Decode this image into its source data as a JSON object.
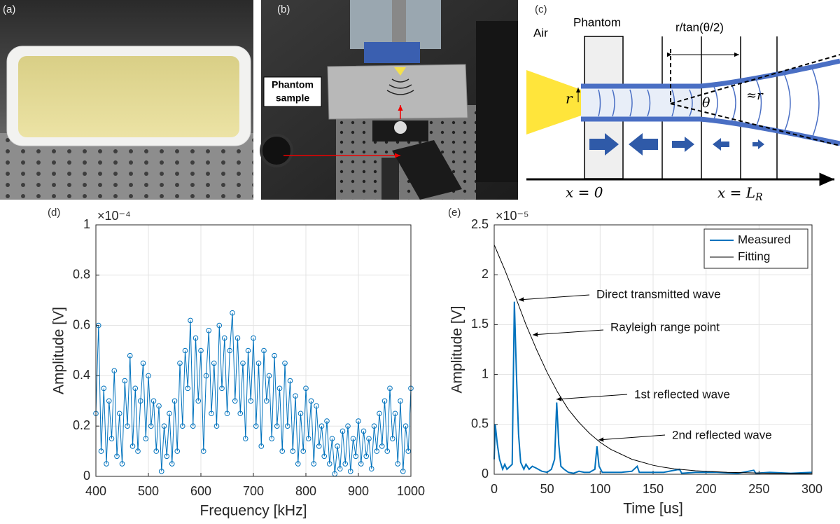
{
  "panels": {
    "a": {
      "label": "(a)"
    },
    "b": {
      "label": "(b)",
      "annotation": [
        "Phantom",
        "sample"
      ]
    },
    "c": {
      "label": "(c)",
      "air": "Air",
      "phantom": "Phantom",
      "distance": "r/tan(θ/2)",
      "radius": "r",
      "angle": "θ",
      "approx_radius": "≈r",
      "x0": "x = 0",
      "xl": "x = L",
      "xl_sub": "R"
    }
  },
  "chart_data": [
    {
      "type": "line",
      "panel_label": "(d)",
      "xlabel": "Frequency [kHz]",
      "ylabel": "Amplitude [V]",
      "y_multiplier": "×10⁻⁴",
      "xlim": [
        400,
        1000
      ],
      "xticks": [
        400,
        500,
        600,
        700,
        800,
        900,
        1000
      ],
      "ylim": [
        0,
        1
      ],
      "yticks": [
        0,
        0.2,
        0.4,
        0.6,
        0.8,
        1
      ],
      "grid": true,
      "series": [
        {
          "color": "#0072bd",
          "marker": "circle",
          "x": [
            400,
            405,
            410,
            415,
            420,
            425,
            430,
            435,
            440,
            445,
            450,
            455,
            460,
            465,
            470,
            475,
            480,
            485,
            490,
            495,
            500,
            505,
            510,
            515,
            520,
            525,
            530,
            535,
            540,
            545,
            550,
            555,
            560,
            565,
            570,
            575,
            580,
            585,
            590,
            595,
            600,
            605,
            610,
            615,
            620,
            625,
            630,
            635,
            640,
            645,
            650,
            655,
            660,
            665,
            670,
            675,
            680,
            685,
            690,
            695,
            700,
            705,
            710,
            715,
            720,
            725,
            730,
            735,
            740,
            745,
            750,
            755,
            760,
            765,
            770,
            775,
            780,
            785,
            790,
            795,
            800,
            805,
            810,
            815,
            820,
            825,
            830,
            835,
            840,
            845,
            850,
            855,
            860,
            865,
            870,
            875,
            880,
            885,
            890,
            895,
            900,
            905,
            910,
            915,
            920,
            925,
            930,
            935,
            940,
            945,
            950,
            955,
            960,
            965,
            970,
            975,
            980,
            985,
            990,
            995,
            1000
          ],
          "values": [
            0.25,
            0.6,
            0.1,
            0.35,
            0.05,
            0.3,
            0.15,
            0.42,
            0.08,
            0.25,
            0.05,
            0.38,
            0.2,
            0.48,
            0.12,
            0.35,
            0.1,
            0.3,
            0.45,
            0.15,
            0.4,
            0.2,
            0.3,
            0.1,
            0.28,
            0.02,
            0.2,
            0.08,
            0.25,
            0.05,
            0.3,
            0.1,
            0.45,
            0.2,
            0.5,
            0.35,
            0.62,
            0.2,
            0.55,
            0.3,
            0.5,
            0.1,
            0.4,
            0.58,
            0.25,
            0.45,
            0.2,
            0.6,
            0.35,
            0.55,
            0.25,
            0.5,
            0.65,
            0.3,
            0.55,
            0.25,
            0.45,
            0.15,
            0.5,
            0.3,
            0.55,
            0.2,
            0.45,
            0.12,
            0.5,
            0.3,
            0.4,
            0.15,
            0.48,
            0.2,
            0.35,
            0.1,
            0.45,
            0.2,
            0.38,
            0.1,
            0.32,
            0.05,
            0.25,
            0.1,
            0.35,
            0.15,
            0.3,
            0.05,
            0.28,
            0.12,
            0.2,
            0.08,
            0.22,
            0.05,
            0.15,
            0.01,
            0.12,
            0.03,
            0.18,
            0.05,
            0.2,
            0.02,
            0.15,
            0.08,
            0.22,
            0.05,
            0.18,
            0.08,
            0.15,
            0.03,
            0.2,
            0.1,
            0.25,
            0.12,
            0.3,
            0.1,
            0.35,
            0.15,
            0.25,
            0.05,
            0.3,
            0.02,
            0.2,
            0.1,
            0.35
          ]
        }
      ]
    },
    {
      "type": "line",
      "panel_label": "(e)",
      "xlabel": "Time [us]",
      "ylabel": "Amplitude [V]",
      "y_multiplier": "×10⁻⁵",
      "xlim": [
        0,
        300
      ],
      "xticks": [
        0,
        50,
        100,
        150,
        200,
        250,
        300
      ],
      "ylim": [
        0,
        2.5
      ],
      "yticks": [
        0,
        0.5,
        1,
        1.5,
        2,
        2.5
      ],
      "grid": true,
      "legend": "top-right",
      "annotations": [
        "Direct transmitted wave",
        "Rayleigh range point",
        "1st reflected wave",
        "2nd reflected wave"
      ],
      "series": [
        {
          "name": "Measured",
          "color": "#0072bd",
          "x": [
            0,
            1,
            3,
            5,
            8,
            10,
            12,
            15,
            17,
            19,
            21,
            23,
            25,
            28,
            30,
            33,
            36,
            40,
            45,
            50,
            54,
            57,
            59,
            61,
            63,
            66,
            70,
            75,
            80,
            85,
            90,
            95,
            97,
            99,
            102,
            110,
            120,
            130,
            135,
            137,
            145,
            160,
            175,
            177,
            190,
            210,
            230,
            245,
            247,
            260,
            280,
            300
          ],
          "values": [
            0.15,
            0.5,
            0.3,
            0.15,
            0.05,
            0.1,
            0.05,
            0.08,
            0.1,
            1.73,
            1.0,
            0.4,
            0.12,
            0.05,
            0.1,
            0.05,
            0.08,
            0.06,
            0.03,
            0.02,
            0.05,
            0.15,
            0.72,
            0.3,
            0.08,
            0.05,
            0.02,
            0.01,
            0.03,
            0.02,
            0.02,
            0.05,
            0.28,
            0.08,
            0.02,
            0.02,
            0.02,
            0.03,
            0.08,
            0.02,
            0.02,
            0.02,
            0.05,
            0.01,
            0.02,
            0.02,
            0.01,
            0.04,
            0.01,
            0.02,
            0.01,
            0.02
          ]
        },
        {
          "name": "Fitting",
          "color": "#000000",
          "x": [
            0,
            10,
            20,
            30,
            40,
            50,
            60,
            70,
            80,
            90,
            100,
            110,
            120,
            130,
            140,
            150,
            160,
            170,
            180,
            190,
            200,
            220,
            240,
            260,
            280,
            300
          ],
          "values": [
            2.3,
            2.05,
            1.78,
            1.5,
            1.25,
            1.02,
            0.82,
            0.65,
            0.52,
            0.41,
            0.32,
            0.25,
            0.2,
            0.15,
            0.12,
            0.09,
            0.07,
            0.055,
            0.045,
            0.035,
            0.03,
            0.02,
            0.015,
            0.01,
            0.008,
            0.006
          ]
        }
      ]
    }
  ]
}
